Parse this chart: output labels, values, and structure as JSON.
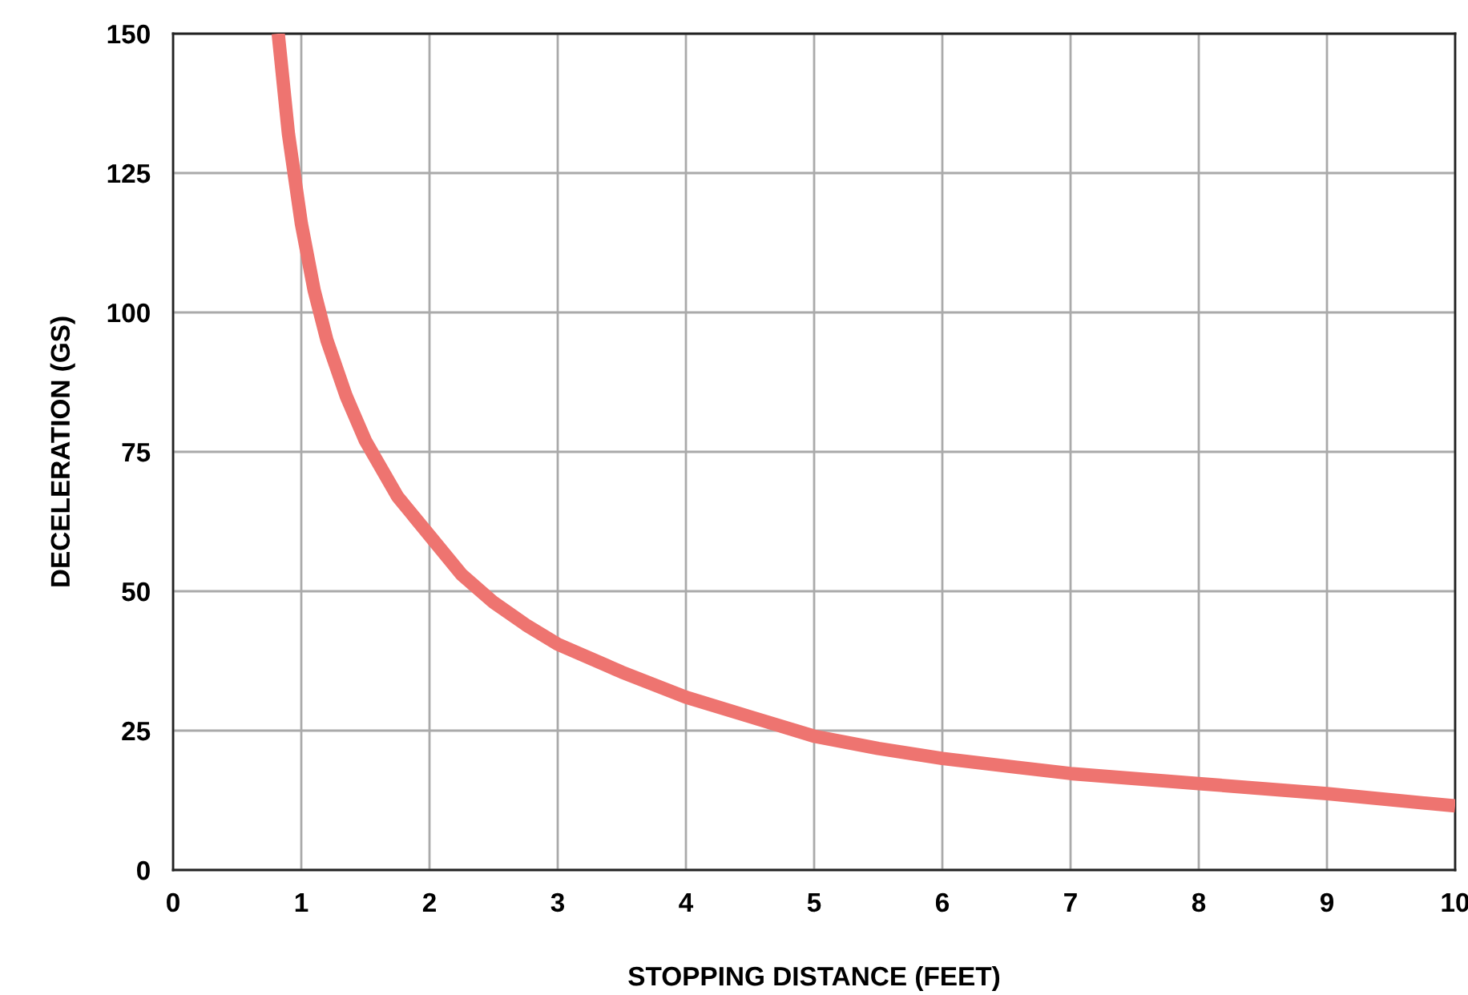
{
  "chart_data": {
    "type": "line",
    "xlabel": "STOPPING DISTANCE (FEET)",
    "ylabel": "DECELERATION (GS)",
    "series": [
      {
        "color": "#ee7470",
        "x": [
          0.82,
          0.9,
          1,
          1.1,
          1.2,
          1.35,
          1.5,
          1.75,
          2,
          2.25,
          2.5,
          2.75,
          3,
          3.5,
          4,
          4.5,
          5,
          5.5,
          6,
          7,
          8,
          9,
          10
        ],
        "values": [
          150,
          132,
          116,
          104,
          95,
          85,
          77,
          67,
          60,
          53,
          48,
          44,
          40.5,
          35.5,
          31,
          27.5,
          24,
          21.8,
          20,
          17.3,
          15.5,
          13.7,
          11.5
        ]
      }
    ],
    "xlim": [
      0,
      10
    ],
    "ylim": [
      0,
      150
    ],
    "xticks": [
      0,
      1,
      2,
      3,
      4,
      5,
      6,
      7,
      8,
      9,
      10
    ],
    "yticks": [
      0,
      25,
      50,
      75,
      100,
      125,
      150
    ],
    "grid": true,
    "legend": false,
    "marker": "none",
    "line_style": "solid"
  }
}
